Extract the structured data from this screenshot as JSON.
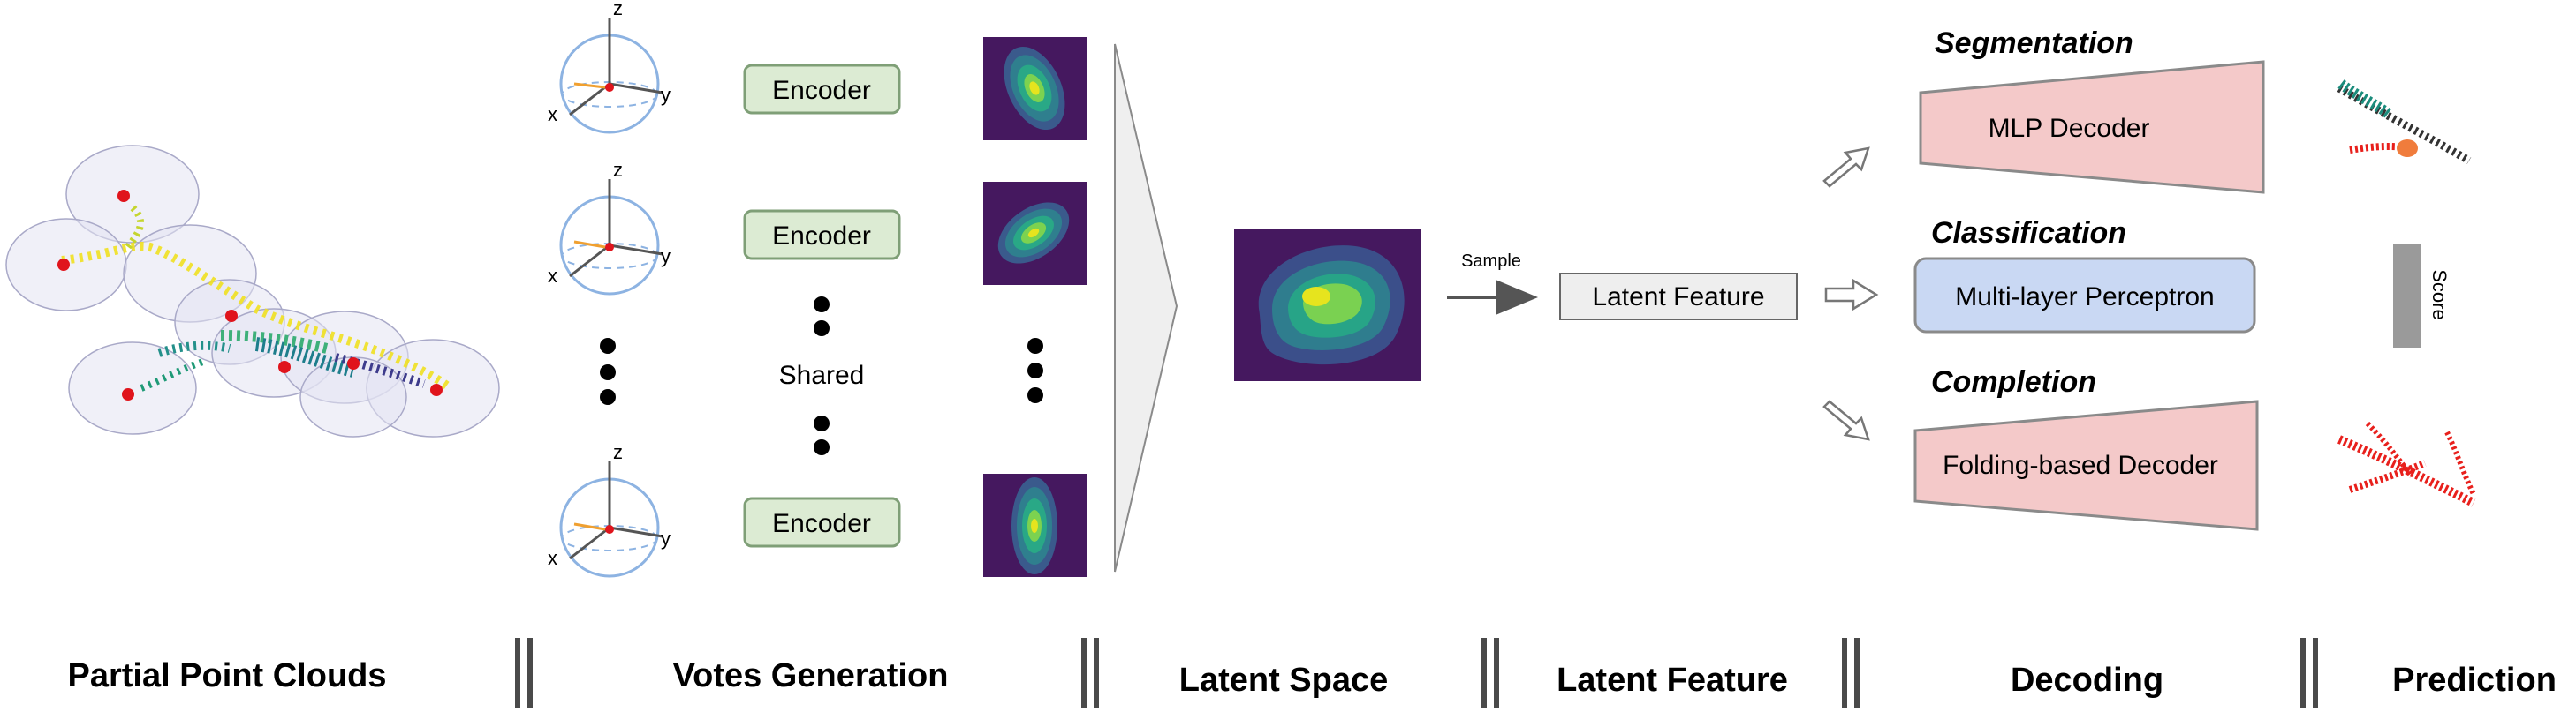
{
  "encoder_label": "Encoder",
  "shared_label": "Shared",
  "sample_label": "Sample",
  "latent_feature_box": "Latent Feature",
  "tasks": {
    "segmentation": {
      "title": "Segmentation",
      "module": "MLP Decoder"
    },
    "classification": {
      "title": "Classification",
      "module": "Multi-layer Perceptron",
      "output": "Score"
    },
    "completion": {
      "title": "Completion",
      "module": "Folding-based Decoder"
    }
  },
  "axes": {
    "x": "x",
    "y": "y",
    "z": "z"
  },
  "stages": [
    "Partial Point Clouds",
    "Votes Generation",
    "Latent Space",
    "Latent Feature",
    "Decoding",
    "Prediction"
  ],
  "colors": {
    "encoder_fill": "#dcebd3",
    "encoder_stroke": "#7f9f77",
    "mlp_fill": "#f4c9c9",
    "perceptron_fill": "#c9d8f3",
    "latent_bg": "#45185f",
    "prediction_red": "#e8201c",
    "score_gray": "#9a9a9a"
  }
}
